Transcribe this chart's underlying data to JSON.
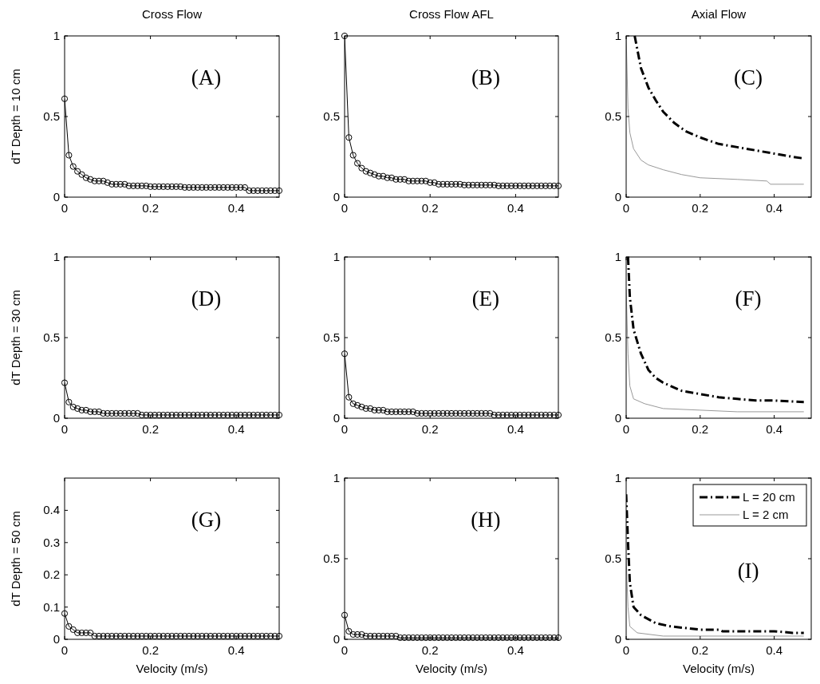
{
  "chart_data": [
    {
      "type": "line",
      "title": "Cross Flow",
      "ylabel": "dT Depth = 10 cm",
      "annotations": [
        "(A)"
      ],
      "xlim": [
        0,
        0.5
      ],
      "xticks": [
        0,
        0.2,
        0.4
      ],
      "ylim": [
        0,
        1
      ],
      "yticks": [
        0,
        0.5,
        1
      ],
      "marker": "circle",
      "line_style": "solid",
      "x": [
        0,
        0.01,
        0.02,
        0.03,
        0.04,
        0.05,
        0.06,
        0.07,
        0.08,
        0.09,
        0.1,
        0.11,
        0.12,
        0.13,
        0.14,
        0.15,
        0.16,
        0.17,
        0.18,
        0.19,
        0.2,
        0.21,
        0.22,
        0.23,
        0.24,
        0.25,
        0.26,
        0.27,
        0.28,
        0.29,
        0.3,
        0.31,
        0.32,
        0.33,
        0.34,
        0.35,
        0.36,
        0.37,
        0.38,
        0.39,
        0.4,
        0.41,
        0.42,
        0.43,
        0.44,
        0.45,
        0.46,
        0.47,
        0.48,
        0.49,
        0.5
      ],
      "series": [
        {
          "color": "#000000",
          "values": [
            0.61,
            0.26,
            0.19,
            0.16,
            0.14,
            0.12,
            0.11,
            0.1,
            0.1,
            0.1,
            0.09,
            0.08,
            0.08,
            0.08,
            0.08,
            0.07,
            0.07,
            0.07,
            0.07,
            0.07,
            0.065,
            0.065,
            0.065,
            0.065,
            0.065,
            0.065,
            0.065,
            0.065,
            0.06,
            0.06,
            0.06,
            0.06,
            0.06,
            0.06,
            0.06,
            0.06,
            0.06,
            0.06,
            0.06,
            0.06,
            0.06,
            0.06,
            0.06,
            0.04,
            0.04,
            0.04,
            0.04,
            0.04,
            0.04,
            0.04,
            0.04
          ]
        }
      ]
    },
    {
      "type": "line",
      "title": "Cross Flow AFL",
      "annotations": [
        "(B)"
      ],
      "xlim": [
        0,
        0.5
      ],
      "xticks": [
        0,
        0.2,
        0.4
      ],
      "ylim": [
        0,
        1
      ],
      "yticks": [
        0,
        0.5,
        1
      ],
      "marker": "circle",
      "line_style": "solid",
      "x": [
        0,
        0.01,
        0.02,
        0.03,
        0.04,
        0.05,
        0.06,
        0.07,
        0.08,
        0.09,
        0.1,
        0.11,
        0.12,
        0.13,
        0.14,
        0.15,
        0.16,
        0.17,
        0.18,
        0.19,
        0.2,
        0.21,
        0.22,
        0.23,
        0.24,
        0.25,
        0.26,
        0.27,
        0.28,
        0.29,
        0.3,
        0.31,
        0.32,
        0.33,
        0.34,
        0.35,
        0.36,
        0.37,
        0.38,
        0.39,
        0.4,
        0.41,
        0.42,
        0.43,
        0.44,
        0.45,
        0.46,
        0.47,
        0.48,
        0.49,
        0.5
      ],
      "series": [
        {
          "color": "#000000",
          "values": [
            1,
            0.37,
            0.26,
            0.21,
            0.18,
            0.16,
            0.15,
            0.14,
            0.13,
            0.13,
            0.12,
            0.12,
            0.11,
            0.11,
            0.11,
            0.1,
            0.1,
            0.1,
            0.1,
            0.1,
            0.09,
            0.09,
            0.08,
            0.08,
            0.08,
            0.08,
            0.08,
            0.08,
            0.075,
            0.075,
            0.075,
            0.075,
            0.075,
            0.075,
            0.075,
            0.075,
            0.07,
            0.07,
            0.07,
            0.07,
            0.07,
            0.07,
            0.07,
            0.07,
            0.07,
            0.07,
            0.07,
            0.07,
            0.07,
            0.07,
            0.07
          ]
        }
      ]
    },
    {
      "type": "line",
      "title": "Axial Flow",
      "annotations": [
        "(C)"
      ],
      "xlim": [
        0,
        0.5
      ],
      "xticks": [
        0,
        0.2,
        0.4
      ],
      "ylim": [
        0,
        1
      ],
      "yticks": [
        0,
        0.5,
        1
      ],
      "marker": "none",
      "series": [
        {
          "color": "#000000",
          "line_style": "dashdot",
          "x": [
            0.023,
            0.04,
            0.06,
            0.08,
            0.1,
            0.13,
            0.16,
            0.2,
            0.25,
            0.3,
            0.35,
            0.4,
            0.45,
            0.48
          ],
          "values": [
            1,
            0.8,
            0.68,
            0.6,
            0.53,
            0.46,
            0.41,
            0.37,
            0.33,
            0.31,
            0.29,
            0.27,
            0.25,
            0.24
          ]
        },
        {
          "color": "#999999",
          "line_style": "solid",
          "x": [
            0,
            0.005,
            0.01,
            0.02,
            0.04,
            0.06,
            0.1,
            0.15,
            0.2,
            0.3,
            0.38,
            0.39,
            0.48
          ],
          "values": [
            1,
            0.55,
            0.4,
            0.3,
            0.23,
            0.2,
            0.17,
            0.14,
            0.12,
            0.11,
            0.1,
            0.08,
            0.08
          ]
        }
      ]
    },
    {
      "type": "line",
      "ylabel": "dT Depth = 30 cm",
      "annotations": [
        "(D)"
      ],
      "xlim": [
        0,
        0.5
      ],
      "xticks": [
        0,
        0.2,
        0.4
      ],
      "ylim": [
        0,
        1
      ],
      "yticks": [
        0,
        0.5,
        1
      ],
      "marker": "circle",
      "line_style": "solid",
      "x": [
        0,
        0.01,
        0.02,
        0.03,
        0.04,
        0.05,
        0.06,
        0.07,
        0.08,
        0.09,
        0.1,
        0.11,
        0.12,
        0.13,
        0.14,
        0.15,
        0.16,
        0.17,
        0.18,
        0.19,
        0.2,
        0.21,
        0.22,
        0.23,
        0.24,
        0.25,
        0.26,
        0.27,
        0.28,
        0.29,
        0.3,
        0.31,
        0.32,
        0.33,
        0.34,
        0.35,
        0.36,
        0.37,
        0.38,
        0.39,
        0.4,
        0.41,
        0.42,
        0.43,
        0.44,
        0.45,
        0.46,
        0.47,
        0.48,
        0.49,
        0.5
      ],
      "series": [
        {
          "color": "#000000",
          "values": [
            0.22,
            0.1,
            0.07,
            0.06,
            0.05,
            0.05,
            0.04,
            0.04,
            0.04,
            0.03,
            0.03,
            0.03,
            0.03,
            0.03,
            0.03,
            0.03,
            0.03,
            0.03,
            0.02,
            0.02,
            0.02,
            0.02,
            0.02,
            0.02,
            0.02,
            0.02,
            0.02,
            0.02,
            0.02,
            0.02,
            0.02,
            0.02,
            0.02,
            0.02,
            0.02,
            0.02,
            0.02,
            0.02,
            0.02,
            0.02,
            0.02,
            0.02,
            0.02,
            0.02,
            0.02,
            0.02,
            0.02,
            0.02,
            0.02,
            0.02,
            0.02
          ]
        }
      ]
    },
    {
      "type": "line",
      "annotations": [
        "(E)"
      ],
      "xlim": [
        0,
        0.5
      ],
      "xticks": [
        0,
        0.2,
        0.4
      ],
      "ylim": [
        0,
        1
      ],
      "yticks": [
        0,
        0.5,
        1
      ],
      "marker": "circle",
      "line_style": "solid",
      "x": [
        0,
        0.01,
        0.02,
        0.03,
        0.04,
        0.05,
        0.06,
        0.07,
        0.08,
        0.09,
        0.1,
        0.11,
        0.12,
        0.13,
        0.14,
        0.15,
        0.16,
        0.17,
        0.18,
        0.19,
        0.2,
        0.21,
        0.22,
        0.23,
        0.24,
        0.25,
        0.26,
        0.27,
        0.28,
        0.29,
        0.3,
        0.31,
        0.32,
        0.33,
        0.34,
        0.35,
        0.36,
        0.37,
        0.38,
        0.39,
        0.4,
        0.41,
        0.42,
        0.43,
        0.44,
        0.45,
        0.46,
        0.47,
        0.48,
        0.49,
        0.5
      ],
      "series": [
        {
          "color": "#000000",
          "values": [
            0.4,
            0.13,
            0.09,
            0.08,
            0.07,
            0.06,
            0.06,
            0.05,
            0.05,
            0.05,
            0.04,
            0.04,
            0.04,
            0.04,
            0.04,
            0.04,
            0.04,
            0.03,
            0.03,
            0.03,
            0.03,
            0.03,
            0.03,
            0.03,
            0.03,
            0.03,
            0.03,
            0.03,
            0.03,
            0.03,
            0.03,
            0.03,
            0.03,
            0.03,
            0.03,
            0.02,
            0.02,
            0.02,
            0.02,
            0.02,
            0.02,
            0.02,
            0.02,
            0.02,
            0.02,
            0.02,
            0.02,
            0.02,
            0.02,
            0.02,
            0.02
          ]
        }
      ]
    },
    {
      "type": "line",
      "annotations": [
        "(F)"
      ],
      "xlim": [
        0,
        0.5
      ],
      "xticks": [
        0,
        0.2,
        0.4
      ],
      "ylim": [
        0,
        1
      ],
      "yticks": [
        0,
        0.5,
        1
      ],
      "marker": "none",
      "series": [
        {
          "color": "#000000",
          "line_style": "dashdot",
          "x": [
            0.005,
            0.01,
            0.02,
            0.04,
            0.06,
            0.08,
            0.1,
            0.15,
            0.2,
            0.25,
            0.3,
            0.35,
            0.4,
            0.48
          ],
          "values": [
            1,
            0.75,
            0.55,
            0.4,
            0.3,
            0.25,
            0.22,
            0.17,
            0.15,
            0.13,
            0.12,
            0.11,
            0.11,
            0.1
          ]
        },
        {
          "color": "#999999",
          "line_style": "solid",
          "x": [
            0,
            0.005,
            0.01,
            0.02,
            0.05,
            0.1,
            0.2,
            0.3,
            0.48
          ],
          "values": [
            0.8,
            0.4,
            0.2,
            0.12,
            0.09,
            0.06,
            0.05,
            0.04,
            0.04
          ]
        }
      ]
    },
    {
      "type": "line",
      "ylabel": "dT Depth = 50 cm",
      "xlabel": "Velocity (m/s)",
      "annotations": [
        "(G)"
      ],
      "xlim": [
        0,
        0.5
      ],
      "xticks": [
        0,
        0.2,
        0.4
      ],
      "ylim": [
        0,
        0.5
      ],
      "yticks": [
        0,
        0.1,
        0.2,
        0.3,
        0.4
      ],
      "marker": "circle",
      "line_style": "solid",
      "x": [
        0,
        0.01,
        0.02,
        0.03,
        0.04,
        0.05,
        0.06,
        0.07,
        0.08,
        0.09,
        0.1,
        0.11,
        0.12,
        0.13,
        0.14,
        0.15,
        0.16,
        0.17,
        0.18,
        0.19,
        0.2,
        0.21,
        0.22,
        0.23,
        0.24,
        0.25,
        0.26,
        0.27,
        0.28,
        0.29,
        0.3,
        0.31,
        0.32,
        0.33,
        0.34,
        0.35,
        0.36,
        0.37,
        0.38,
        0.39,
        0.4,
        0.41,
        0.42,
        0.43,
        0.44,
        0.45,
        0.46,
        0.47,
        0.48,
        0.49,
        0.5
      ],
      "series": [
        {
          "color": "#000000",
          "values": [
            0.08,
            0.04,
            0.03,
            0.02,
            0.02,
            0.02,
            0.02,
            0.01,
            0.01,
            0.01,
            0.01,
            0.01,
            0.01,
            0.01,
            0.01,
            0.01,
            0.01,
            0.01,
            0.01,
            0.01,
            0.01,
            0.01,
            0.01,
            0.01,
            0.01,
            0.01,
            0.01,
            0.01,
            0.01,
            0.01,
            0.01,
            0.01,
            0.01,
            0.01,
            0.01,
            0.01,
            0.01,
            0.01,
            0.01,
            0.01,
            0.01,
            0.01,
            0.01,
            0.01,
            0.01,
            0.01,
            0.01,
            0.01,
            0.01,
            0.01,
            0.01
          ]
        }
      ]
    },
    {
      "type": "line",
      "xlabel": "Velocity (m/s)",
      "annotations": [
        "(H)"
      ],
      "xlim": [
        0,
        0.5
      ],
      "xticks": [
        0,
        0.2,
        0.4
      ],
      "ylim": [
        0,
        1
      ],
      "yticks": [
        0,
        0.5,
        1
      ],
      "marker": "circle",
      "line_style": "solid",
      "x": [
        0,
        0.01,
        0.02,
        0.03,
        0.04,
        0.05,
        0.06,
        0.07,
        0.08,
        0.09,
        0.1,
        0.11,
        0.12,
        0.13,
        0.14,
        0.15,
        0.16,
        0.17,
        0.18,
        0.19,
        0.2,
        0.21,
        0.22,
        0.23,
        0.24,
        0.25,
        0.26,
        0.27,
        0.28,
        0.29,
        0.3,
        0.31,
        0.32,
        0.33,
        0.34,
        0.35,
        0.36,
        0.37,
        0.38,
        0.39,
        0.4,
        0.41,
        0.42,
        0.43,
        0.44,
        0.45,
        0.46,
        0.47,
        0.48,
        0.49,
        0.5
      ],
      "series": [
        {
          "color": "#000000",
          "values": [
            0.15,
            0.05,
            0.03,
            0.03,
            0.03,
            0.02,
            0.02,
            0.02,
            0.02,
            0.02,
            0.02,
            0.02,
            0.02,
            0.01,
            0.01,
            0.01,
            0.01,
            0.01,
            0.01,
            0.01,
            0.01,
            0.01,
            0.01,
            0.01,
            0.01,
            0.01,
            0.01,
            0.01,
            0.01,
            0.01,
            0.01,
            0.01,
            0.01,
            0.01,
            0.01,
            0.01,
            0.01,
            0.01,
            0.01,
            0.01,
            0.01,
            0.01,
            0.01,
            0.01,
            0.01,
            0.01,
            0.01,
            0.01,
            0.01,
            0.01,
            0.01
          ]
        }
      ]
    },
    {
      "type": "line",
      "xlabel": "Velocity (m/s)",
      "annotations": [
        "(I)"
      ],
      "xlim": [
        0,
        0.5
      ],
      "xticks": [
        0,
        0.2,
        0.4
      ],
      "ylim": [
        0,
        1
      ],
      "yticks": [
        0,
        0.5,
        1
      ],
      "marker": "none",
      "legend": "top right",
      "series": [
        {
          "name": "L = 20 cm",
          "color": "#000000",
          "line_style": "dashdot",
          "x": [
            0,
            0.005,
            0.01,
            0.02,
            0.04,
            0.08,
            0.12,
            0.2,
            0.25,
            0.26,
            0.4,
            0.45,
            0.48
          ],
          "values": [
            0.9,
            0.6,
            0.35,
            0.2,
            0.15,
            0.1,
            0.08,
            0.06,
            0.06,
            0.05,
            0.05,
            0.04,
            0.04
          ]
        },
        {
          "name": "L = 2 cm",
          "color": "#999999",
          "line_style": "solid",
          "x": [
            0,
            0.005,
            0.01,
            0.03,
            0.1,
            0.48
          ],
          "values": [
            0.5,
            0.2,
            0.08,
            0.04,
            0.02,
            0.02
          ]
        }
      ]
    }
  ]
}
